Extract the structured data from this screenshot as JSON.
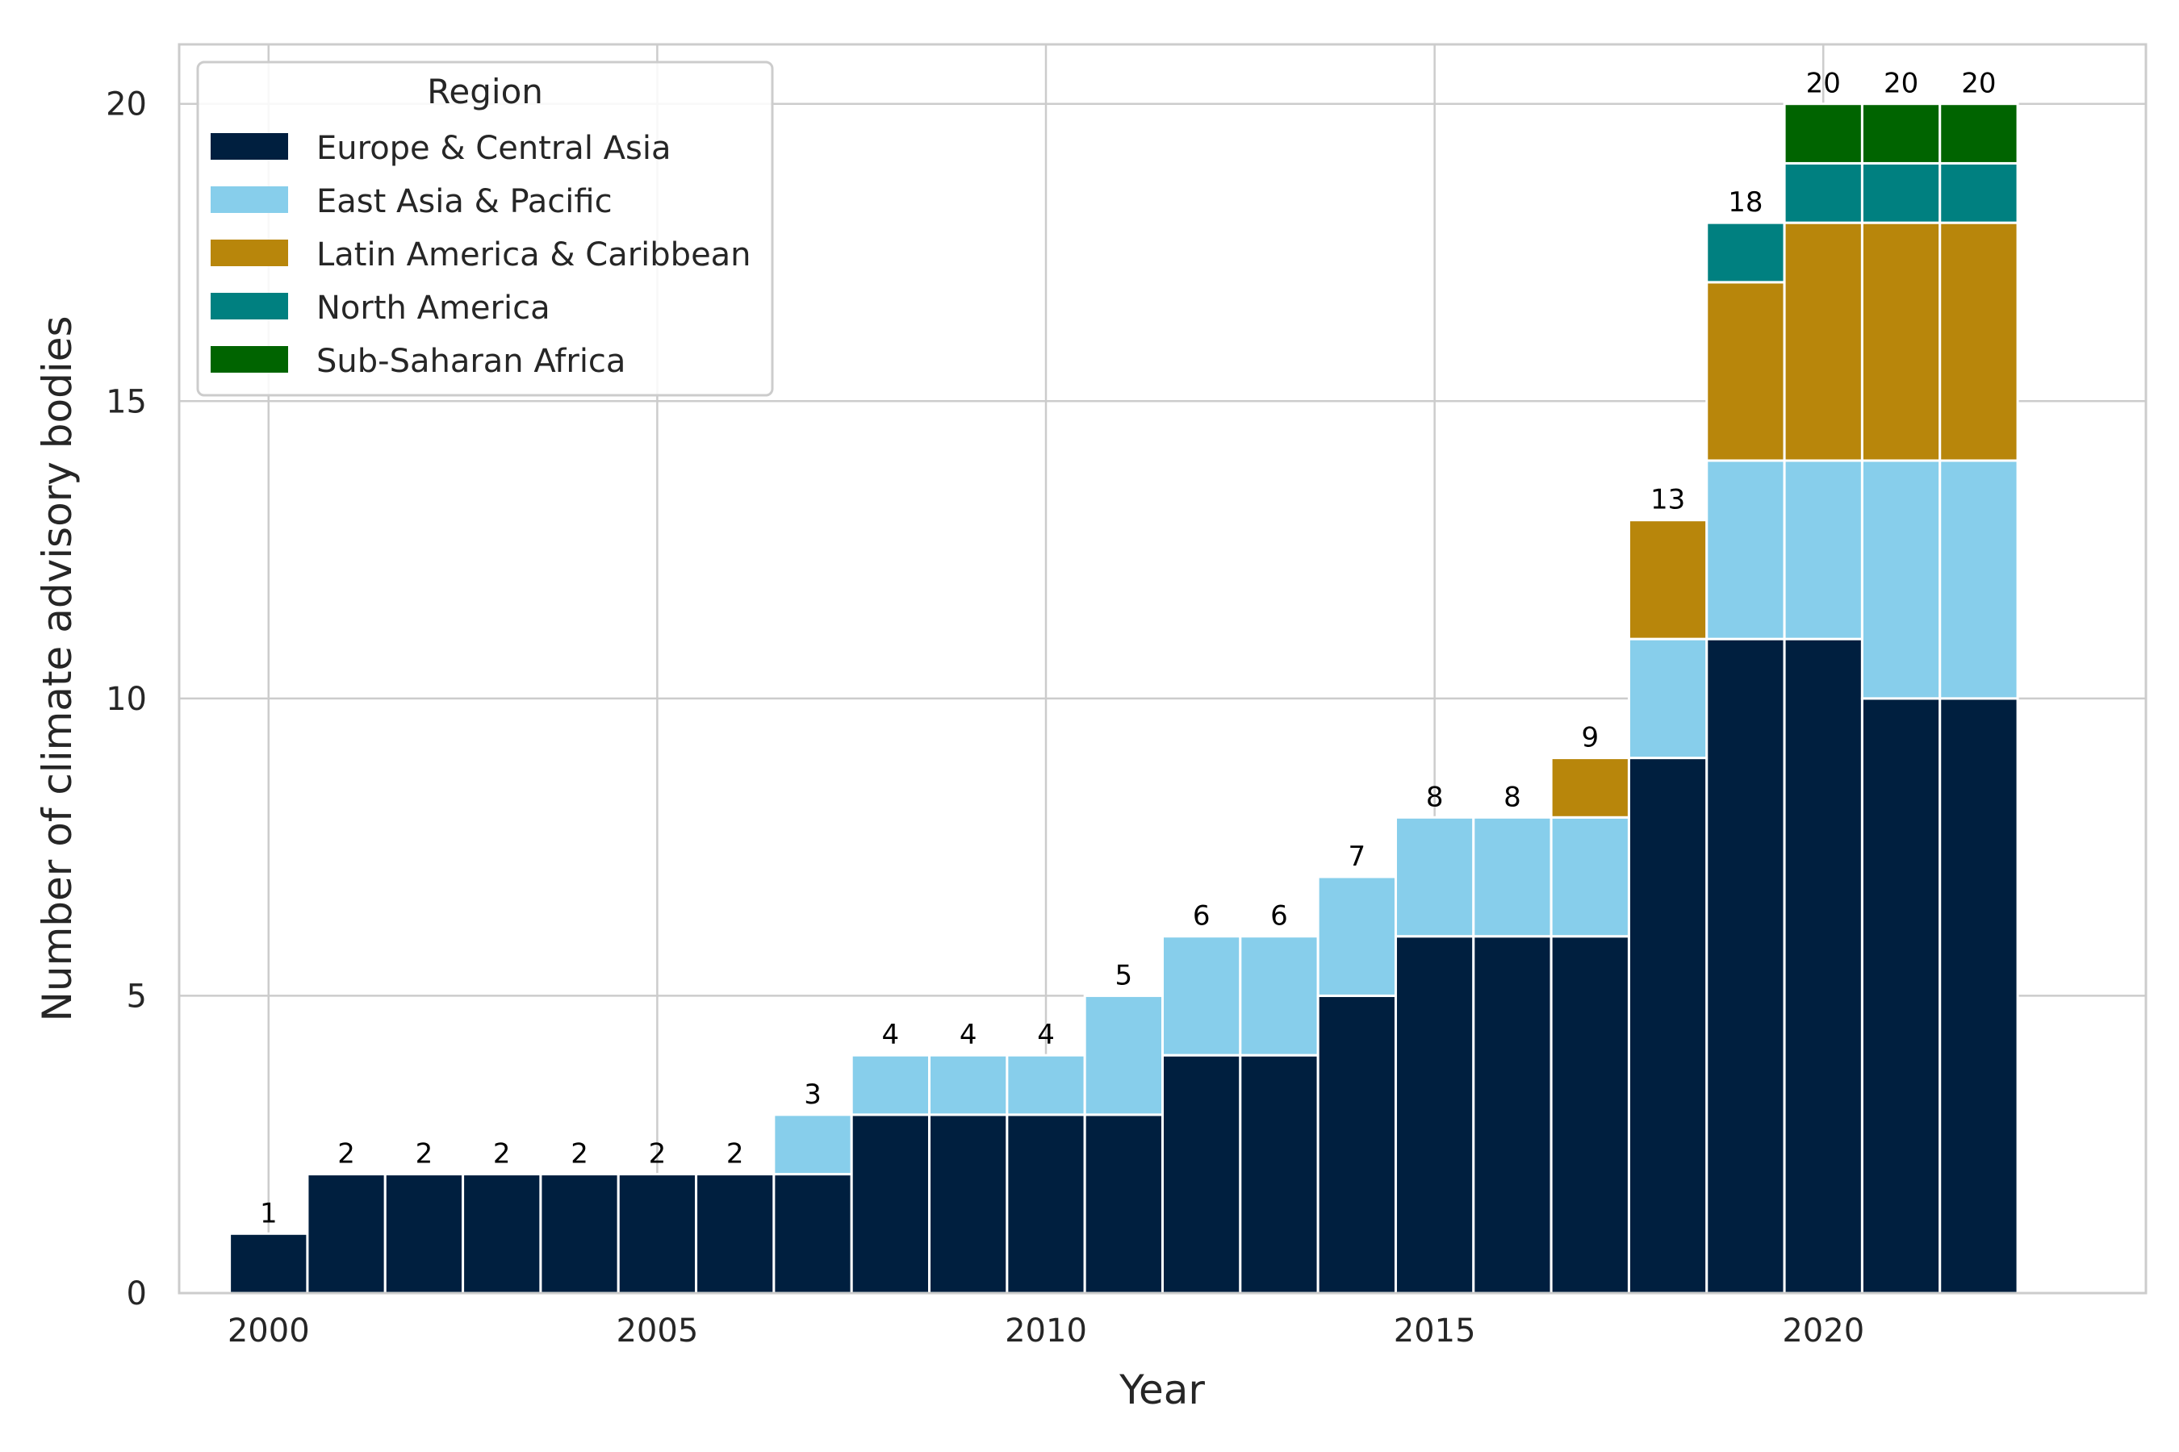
{
  "chart_data": {
    "type": "bar",
    "stacked": true,
    "title": "",
    "xlabel": "Year",
    "ylabel": "Number of climate advisory bodies",
    "x": [
      2000,
      2001,
      2002,
      2003,
      2004,
      2005,
      2006,
      2007,
      2008,
      2009,
      2010,
      2011,
      2012,
      2013,
      2014,
      2015,
      2016,
      2017,
      2018,
      2019,
      2020,
      2021,
      2022
    ],
    "xlim": [
      1998.85,
      2024.15
    ],
    "xticks": [
      2000,
      2005,
      2010,
      2015,
      2020
    ],
    "ylim": [
      0,
      21
    ],
    "yticks": [
      0,
      5,
      10,
      15,
      20
    ],
    "grid": true,
    "legend": {
      "title": "Region",
      "placement": "top-left"
    },
    "series": [
      {
        "name": "Europe & Central Asia",
        "color": "#001f3f",
        "values": [
          1,
          2,
          2,
          2,
          2,
          2,
          2,
          2,
          3,
          3,
          3,
          3,
          4,
          4,
          5,
          6,
          6,
          6,
          9,
          11,
          11,
          10,
          10
        ]
      },
      {
        "name": "East Asia & Pacific",
        "color": "#87ceeb",
        "values": [
          0,
          0,
          0,
          0,
          0,
          0,
          0,
          1,
          1,
          1,
          1,
          2,
          2,
          2,
          2,
          2,
          2,
          2,
          2,
          3,
          3,
          4,
          4
        ]
      },
      {
        "name": "Latin America & Caribbean",
        "color": "#b8860b",
        "values": [
          0,
          0,
          0,
          0,
          0,
          0,
          0,
          0,
          0,
          0,
          0,
          0,
          0,
          0,
          0,
          0,
          0,
          1,
          2,
          3,
          4,
          4,
          4
        ]
      },
      {
        "name": "North America",
        "color": "#008080",
        "values": [
          0,
          0,
          0,
          0,
          0,
          0,
          0,
          0,
          0,
          0,
          0,
          0,
          0,
          0,
          0,
          0,
          0,
          0,
          0,
          1,
          1,
          1,
          1
        ]
      },
      {
        "name": "Sub-Saharan Africa",
        "color": "#006400",
        "values": [
          0,
          0,
          0,
          0,
          0,
          0,
          0,
          0,
          0,
          0,
          0,
          0,
          0,
          0,
          0,
          0,
          0,
          0,
          0,
          0,
          1,
          1,
          1
        ]
      }
    ],
    "totals": [
      1,
      2,
      2,
      2,
      2,
      2,
      2,
      3,
      4,
      4,
      4,
      5,
      6,
      6,
      7,
      8,
      8,
      9,
      13,
      18,
      20,
      20,
      20
    ]
  }
}
